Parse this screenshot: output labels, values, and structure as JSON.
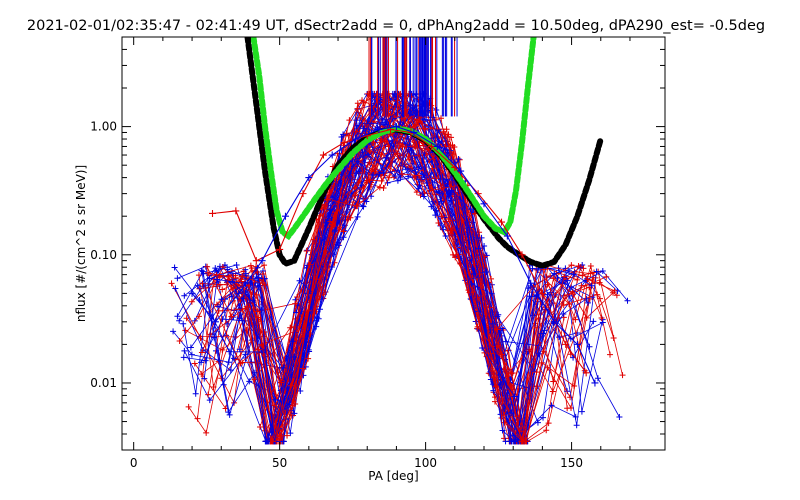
{
  "chart_data": {
    "type": "line",
    "title": "2021-02-01/02:35:47 - 02:41:49 UT, dSectr2add = 0, dPhAng2add = 10.50deg, dPA290_est=  -0.5deg",
    "xlabel": "PA [deg]",
    "ylabel": "nflux [#/(cm^2 s sr MeV)]",
    "xlim": [
      -4,
      182
    ],
    "ylim": [
      0.003,
      5.0
    ],
    "yscale": "log",
    "grid": false,
    "x_ticks": [
      0,
      50,
      100,
      150
    ],
    "x_tick_labels": [
      "0",
      "50",
      "100",
      "150"
    ],
    "y_ticks": [
      0.01,
      0.1,
      1.0
    ],
    "y_tick_labels": [
      "0.01",
      "0.10",
      "1.00"
    ],
    "colors": {
      "red": "#e00000",
      "blue": "#0000e0",
      "black": "#000000",
      "green": "#22dd22"
    },
    "series": [
      {
        "color": "black",
        "style": "dashed-thick",
        "x": [
          39,
          42,
          45,
          48,
          50,
          52,
          55,
          60,
          65,
          70,
          75,
          80,
          85,
          90,
          95,
          100,
          105,
          110,
          115,
          120,
          125,
          128,
          132,
          136,
          140,
          144,
          148,
          152,
          156,
          160
        ],
        "y": [
          5.0,
          1.5,
          0.45,
          0.16,
          0.1,
          0.085,
          0.09,
          0.16,
          0.3,
          0.5,
          0.68,
          0.82,
          0.92,
          0.95,
          0.9,
          0.78,
          0.6,
          0.42,
          0.28,
          0.19,
          0.135,
          0.115,
          0.1,
          0.088,
          0.082,
          0.088,
          0.12,
          0.2,
          0.38,
          0.8
        ]
      },
      {
        "color": "green",
        "style": "dashed-thick",
        "x": [
          41,
          43,
          45,
          47,
          49,
          51,
          53,
          55,
          58,
          62,
          66,
          70,
          75,
          80,
          85,
          90,
          95,
          100,
          105,
          110,
          115,
          120,
          124,
          127,
          129,
          131,
          133,
          135,
          137
        ],
        "y": [
          5.0,
          2.5,
          1.0,
          0.45,
          0.22,
          0.15,
          0.14,
          0.16,
          0.2,
          0.27,
          0.36,
          0.46,
          0.62,
          0.78,
          0.9,
          0.97,
          0.92,
          0.8,
          0.62,
          0.44,
          0.3,
          0.2,
          0.16,
          0.15,
          0.18,
          0.32,
          0.75,
          2.0,
          5.0
        ]
      },
      {
        "color": "red",
        "style": "solid-plus",
        "x": [
          27,
          35,
          42,
          50,
          58,
          65,
          72,
          80,
          88,
          95,
          102,
          110,
          118,
          126,
          133,
          140,
          148,
          155
        ],
        "y": [
          0.21,
          0.22,
          0.09,
          0.11,
          0.3,
          0.6,
          0.75,
          0.85,
          0.95,
          0.9,
          0.7,
          0.48,
          0.3,
          0.18,
          0.1,
          0.05,
          0.02,
          0.012
        ]
      },
      {
        "color": "blue",
        "style": "solid-plus",
        "x": [
          20,
          28,
          36,
          44,
          52,
          60,
          68,
          76,
          84,
          90,
          96,
          104,
          112,
          120,
          128,
          136,
          144,
          152,
          158
        ],
        "y": [
          0.05,
          0.03,
          0.05,
          0.09,
          0.2,
          0.4,
          0.6,
          0.8,
          0.95,
          1.0,
          0.9,
          0.7,
          0.45,
          0.25,
          0.14,
          0.06,
          0.03,
          0.02,
          0.01
        ]
      }
    ]
  }
}
